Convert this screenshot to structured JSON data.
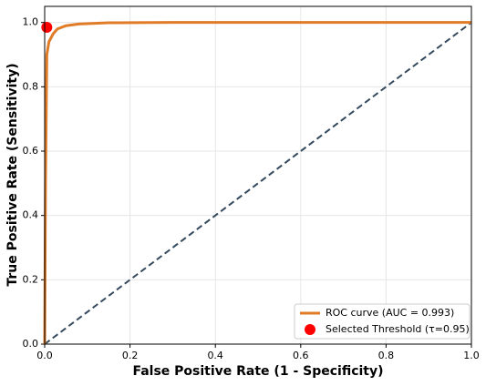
{
  "chart_data": {
    "type": "line",
    "x_label": "False Positive Rate (1 - Specificity)",
    "y_label": "True Positive Rate (Sensitivity)",
    "xlim": [
      0,
      1
    ],
    "ylim": [
      0,
      1.05
    ],
    "xticks": [
      {
        "value": 0,
        "label": "0.0"
      },
      0.2,
      0.4,
      0.6,
      0.8,
      {
        "value": 1,
        "label": "1.0"
      }
    ],
    "yticks": [
      {
        "value": 0,
        "label": "0.0"
      },
      0.2,
      0.4,
      0.6,
      0.8,
      {
        "value": 1,
        "label": "1.0"
      }
    ],
    "grid": true,
    "legend": "lower right",
    "series": [
      {
        "name": "ROC curve (AUC = 0.993)",
        "color": "#e07b27",
        "type": "line",
        "x": [
          0,
          0.002,
          0.005,
          0.01,
          0.02,
          0.03,
          0.05,
          0.08,
          0.15,
          0.3,
          1
        ],
        "values": [
          0,
          0.5,
          0.9,
          0.94,
          0.965,
          0.98,
          0.99,
          0.995,
          0.999,
          1,
          1
        ]
      },
      {
        "name": "Selected Threshold (τ=0.95)",
        "color": "#ff0000",
        "type": "scatter",
        "x": [
          0.005
        ],
        "values": [
          0.985
        ]
      }
    ],
    "diagonal": {
      "color": "#34495e",
      "x": [
        0,
        1
      ],
      "values": [
        0,
        1
      ]
    }
  }
}
